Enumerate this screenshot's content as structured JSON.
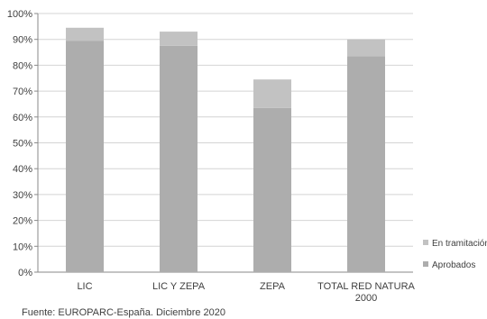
{
  "chart_data": {
    "type": "bar",
    "stacked": true,
    "categories": [
      [
        "LIC"
      ],
      [
        "LIC Y ZEPA"
      ],
      [
        "ZEPA"
      ],
      [
        "TOTAL RED NATURA",
        "2000"
      ]
    ],
    "series": [
      {
        "name": "Aprobados",
        "values": [
          89.5,
          87.5,
          63.5,
          83.5
        ],
        "color": "#adadad"
      },
      {
        "name": "En tramitación",
        "values": [
          5,
          5.5,
          11,
          6.5
        ],
        "color": "#c2c2c2"
      }
    ],
    "y_ticks": [
      "0%",
      "10%",
      "20%",
      "30%",
      "40%",
      "50%",
      "60%",
      "70%",
      "80%",
      "90%",
      "100%"
    ],
    "ylim": [
      0,
      100
    ],
    "grid": true,
    "legend": "right",
    "legend_order": [
      "En tramitación",
      "Aprobados"
    ],
    "source": "Fuente: EUROPARC-España.  Diciembre 2020"
  }
}
